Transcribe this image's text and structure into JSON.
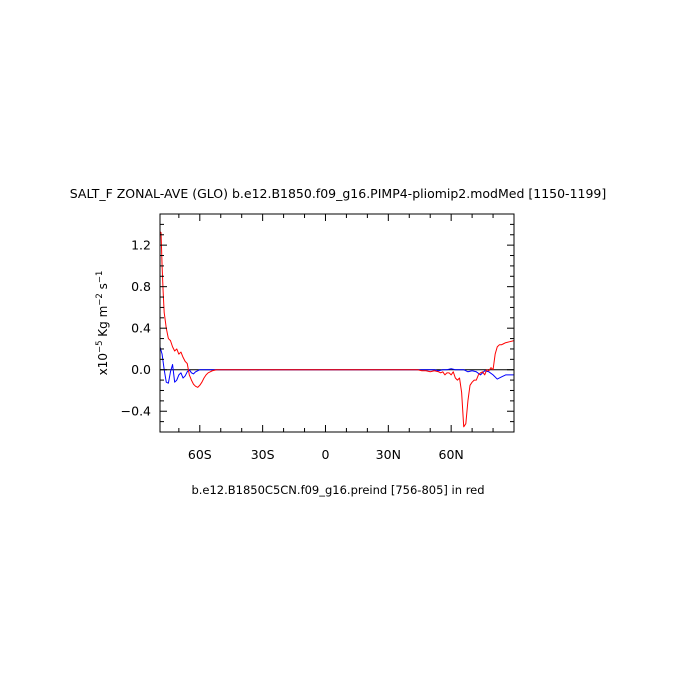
{
  "chart_data": {
    "type": "line",
    "title": "SALT_F ZONAL-AVE (GLO) b.e12.B1850.f09_g16.PIMP4-pliomip2.modMed [1150-1199]",
    "subtitle": "b.e12.B1850C5CN.f09_g16.preind [756-805] in red",
    "ylabel_parts": {
      "prefix": "x10",
      "exp": "−5",
      "units_a": " Kg m",
      "exp2": "−2",
      "units_b": " s",
      "exp3": "−1"
    },
    "xlim": [
      -79,
      90
    ],
    "ylim": [
      -0.6,
      1.5
    ],
    "x_ticks": [
      {
        "value": -60,
        "label": "60S"
      },
      {
        "value": -30,
        "label": "30S"
      },
      {
        "value": 0,
        "label": "0"
      },
      {
        "value": 30,
        "label": "30N"
      },
      {
        "value": 60,
        "label": "60N"
      }
    ],
    "y_ticks": [
      {
        "value": 1.2,
        "label": "1.2"
      },
      {
        "value": 0.8,
        "label": "0.8"
      },
      {
        "value": 0.4,
        "label": "0.4"
      },
      {
        "value": 0.0,
        "label": "0.0"
      },
      {
        "value": -0.4,
        "label": "−0.4"
      }
    ],
    "zero_line": true,
    "series": [
      {
        "color": "#0000ff",
        "x": [
          -79,
          -78,
          -77,
          -76,
          -75,
          -74,
          -73,
          -72,
          -71,
          -70,
          -69,
          -68,
          -67,
          -66,
          -65,
          -64,
          -63,
          -62,
          -61,
          -60,
          -55,
          -50,
          -40,
          -30,
          -20,
          -10,
          0,
          10,
          20,
          30,
          40,
          45,
          48,
          50,
          52,
          54,
          56,
          58,
          60,
          62,
          64,
          66,
          68,
          70,
          72,
          74,
          76,
          78,
          80,
          82,
          84,
          86,
          88,
          90
        ],
        "y": [
          0.22,
          0.15,
          0.0,
          -0.12,
          -0.13,
          -0.02,
          0.05,
          -0.12,
          -0.1,
          -0.05,
          -0.03,
          -0.08,
          -0.06,
          -0.02,
          0.0,
          -0.03,
          -0.04,
          -0.02,
          -0.01,
          0.0,
          0.0,
          0.0,
          0.0,
          0.0,
          0.0,
          0.0,
          0.0,
          0.0,
          0.0,
          0.0,
          0.0,
          0.0,
          0.0,
          0.0,
          0.0,
          -0.01,
          0.0,
          0.0,
          0.01,
          0.0,
          0.0,
          0.0,
          -0.02,
          -0.01,
          -0.02,
          -0.05,
          -0.01,
          -0.02,
          -0.05,
          -0.09,
          -0.07,
          -0.05,
          -0.05,
          -0.05
        ]
      },
      {
        "color": "#ff0000",
        "x": [
          -79,
          -78.5,
          -78,
          -77.5,
          -77,
          -76,
          -75,
          -74,
          -73,
          -72,
          -71,
          -70,
          -69,
          -68,
          -67,
          -66,
          -65,
          -64,
          -63,
          -62,
          -61,
          -60,
          -59,
          -58,
          -57,
          -56,
          -55,
          -54,
          -52,
          -50,
          -45,
          -40,
          -30,
          -20,
          -10,
          0,
          10,
          20,
          30,
          40,
          44,
          46,
          48,
          50,
          52,
          54,
          55,
          56,
          57,
          58,
          59,
          60,
          61,
          62,
          63,
          64,
          65,
          66,
          67,
          68,
          69,
          70,
          71,
          72,
          73,
          74,
          75,
          76,
          77,
          78,
          79,
          80,
          81,
          82,
          83,
          84,
          85,
          86,
          88,
          90
        ],
        "y": [
          1.33,
          1.32,
          1.0,
          0.75,
          0.55,
          0.4,
          0.3,
          0.28,
          0.22,
          0.18,
          0.2,
          0.15,
          0.17,
          0.12,
          0.08,
          0.06,
          -0.05,
          -0.1,
          -0.14,
          -0.16,
          -0.17,
          -0.15,
          -0.12,
          -0.08,
          -0.05,
          -0.03,
          -0.02,
          -0.01,
          0.0,
          0.0,
          0.0,
          0.0,
          0.0,
          0.0,
          0.0,
          0.0,
          0.0,
          0.0,
          0.0,
          0.0,
          0.0,
          -0.01,
          -0.01,
          -0.02,
          -0.01,
          -0.02,
          -0.03,
          -0.02,
          -0.05,
          -0.03,
          -0.03,
          -0.05,
          -0.02,
          -0.08,
          -0.1,
          -0.08,
          -0.22,
          -0.55,
          -0.52,
          -0.3,
          -0.15,
          -0.12,
          -0.1,
          -0.1,
          -0.05,
          -0.03,
          -0.02,
          -0.05,
          0.0,
          -0.01,
          0.02,
          0.0,
          0.15,
          0.22,
          0.24,
          0.24,
          0.25,
          0.26,
          0.27,
          0.28
        ]
      }
    ]
  }
}
